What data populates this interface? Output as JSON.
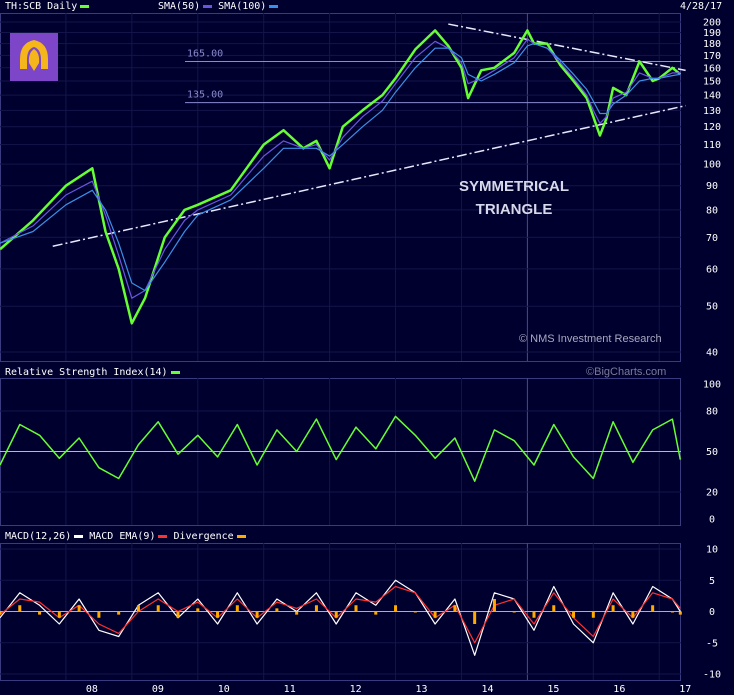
{
  "header": {
    "symbol": "TH:SCB Daily",
    "sma50": "SMA(50)",
    "sma100": "SMA(100)",
    "date": "4/28/17"
  },
  "colors": {
    "background": "#00002e",
    "price": "#66ff33",
    "sma50": "#6b55e0",
    "sma100": "#3a8fe8",
    "level": "#8a8ad0",
    "trendline": "#e8e8ff",
    "macd": "#ffffff",
    "macd_ema": "#ff3030",
    "divergence": "#ffaa00",
    "logo": "#7d45c8"
  },
  "annotations": {
    "pattern_line1": "SYMMETRICAL",
    "pattern_line2": "TRIANGLE",
    "copyright": "© NMS Investment Research",
    "bigcharts": "©BigCharts.com"
  },
  "logo_icon": "scb-bank-logo-icon",
  "chart_data": [
    {
      "type": "line",
      "panel": "price",
      "scale": "log",
      "ylim": [
        40,
        200
      ],
      "yticks": [
        40,
        50,
        60,
        70,
        80,
        90,
        100,
        110,
        120,
        130,
        140,
        150,
        160,
        170,
        180,
        190,
        200
      ],
      "xlabels": [
        "08",
        "09",
        "10",
        "11",
        "12",
        "13",
        "14",
        "15",
        "16",
        "17"
      ],
      "x": [
        2007.0,
        2007.5,
        2008.0,
        2008.4,
        2008.6,
        2008.8,
        2009.0,
        2009.2,
        2009.5,
        2009.8,
        2010.0,
        2010.5,
        2011.0,
        2011.3,
        2011.6,
        2011.8,
        2012.0,
        2012.2,
        2012.5,
        2012.8,
        2013.0,
        2013.3,
        2013.6,
        2013.8,
        2014.0,
        2014.1,
        2014.3,
        2014.5,
        2014.8,
        2015.0,
        2015.1,
        2015.3,
        2015.5,
        2015.7,
        2015.9,
        2016.0,
        2016.1,
        2016.2,
        2016.3,
        2016.5,
        2016.7,
        2016.9,
        2017.0,
        2017.2,
        2017.32
      ],
      "series": [
        {
          "name": "TH:SCB Daily",
          "values": [
            66,
            76,
            90,
            98,
            72,
            60,
            46,
            52,
            70,
            80,
            82,
            88,
            110,
            118,
            108,
            112,
            98,
            120,
            130,
            140,
            152,
            175,
            192,
            178,
            160,
            138,
            158,
            160,
            172,
            192,
            180,
            180,
            162,
            150,
            138,
            126,
            115,
            125,
            145,
            140,
            165,
            150,
            152,
            160,
            155
          ]
        },
        {
          "name": "SMA(50)",
          "values": [
            68,
            74,
            86,
            92,
            78,
            64,
            52,
            54,
            66,
            76,
            80,
            86,
            104,
            112,
            108,
            110,
            102,
            114,
            126,
            136,
            148,
            168,
            182,
            176,
            164,
            148,
            152,
            158,
            168,
            184,
            180,
            176,
            164,
            152,
            140,
            130,
            122,
            126,
            138,
            142,
            156,
            152,
            152,
            156,
            156
          ]
        },
        {
          "name": "SMA(100)",
          "values": [
            68,
            72,
            82,
            88,
            80,
            68,
            56,
            54,
            62,
            72,
            78,
            84,
            98,
            108,
            108,
            108,
            104,
            110,
            120,
            130,
            142,
            160,
            176,
            176,
            168,
            155,
            150,
            155,
            164,
            178,
            180,
            176,
            166,
            155,
            144,
            136,
            128,
            128,
            134,
            140,
            150,
            152,
            152,
            154,
            155
          ]
        }
      ],
      "horizontal_lines": [
        {
          "label": "165.00",
          "value": 165
        },
        {
          "label": "135.00",
          "value": 135
        }
      ],
      "trendlines": [
        {
          "x": [
            2007.8,
            2017.4
          ],
          "y": [
            67,
            133
          ]
        },
        {
          "x": [
            2013.8,
            2017.4
          ],
          "y": [
            198,
            158
          ]
        }
      ]
    },
    {
      "type": "line",
      "panel": "rsi",
      "title": "Relative Strength Index(14)",
      "ylim": [
        0,
        100
      ],
      "yticks": [
        0,
        20,
        50,
        80,
        100
      ],
      "reference_line": 50,
      "x": [
        2007.0,
        2007.3,
        2007.6,
        2007.9,
        2008.2,
        2008.5,
        2008.8,
        2009.1,
        2009.4,
        2009.7,
        2010.0,
        2010.3,
        2010.6,
        2010.9,
        2011.2,
        2011.5,
        2011.8,
        2012.1,
        2012.4,
        2012.7,
        2013.0,
        2013.3,
        2013.6,
        2013.9,
        2014.2,
        2014.5,
        2014.8,
        2015.1,
        2015.4,
        2015.7,
        2016.0,
        2016.3,
        2016.6,
        2016.9,
        2017.2,
        2017.32
      ],
      "series": [
        {
          "name": "Relative Strength Index(14)",
          "values": [
            40,
            70,
            62,
            45,
            60,
            38,
            30,
            55,
            72,
            48,
            62,
            46,
            70,
            40,
            66,
            50,
            74,
            44,
            68,
            52,
            76,
            62,
            45,
            60,
            28,
            66,
            58,
            40,
            70,
            46,
            30,
            72,
            42,
            66,
            74,
            44
          ]
        }
      ]
    },
    {
      "type": "line",
      "panel": "macd",
      "title": "MACD(12,26)",
      "ylim": [
        -10,
        10
      ],
      "yticks": [
        -10,
        -5,
        0,
        5,
        10
      ],
      "x": [
        2007.0,
        2007.3,
        2007.6,
        2007.9,
        2008.2,
        2008.5,
        2008.8,
        2009.1,
        2009.4,
        2009.7,
        2010.0,
        2010.3,
        2010.6,
        2010.9,
        2011.2,
        2011.5,
        2011.8,
        2012.1,
        2012.4,
        2012.7,
        2013.0,
        2013.3,
        2013.6,
        2013.9,
        2014.2,
        2014.5,
        2014.8,
        2015.1,
        2015.4,
        2015.7,
        2016.0,
        2016.3,
        2016.6,
        2016.9,
        2017.2,
        2017.32
      ],
      "series": [
        {
          "name": "MACD(12,26)",
          "values": [
            -1,
            3,
            1,
            -2,
            2,
            -3,
            -4,
            1,
            3,
            -1,
            2,
            -2,
            3,
            -2,
            2,
            0,
            3,
            -2,
            3,
            1,
            5,
            3,
            -2,
            2,
            -7,
            3,
            2,
            -3,
            4,
            -2,
            -5,
            3,
            -2,
            4,
            2,
            0
          ]
        },
        {
          "name": "MACD EMA(9)",
          "values": [
            -0.5,
            2,
            1.5,
            -1,
            1,
            -2,
            -3.5,
            0,
            2,
            0,
            1.5,
            -1,
            2,
            -1,
            1.5,
            0.5,
            2,
            -1,
            2,
            1.5,
            4,
            3,
            -1,
            1,
            -5,
            1,
            2,
            -2,
            3,
            -1,
            -4,
            2,
            -1,
            3,
            2,
            0.5
          ]
        },
        {
          "name": "Divergence",
          "values": [
            -0.5,
            1,
            -0.5,
            -1,
            1,
            -1,
            -0.5,
            1,
            1,
            -1,
            0.5,
            -1,
            1,
            -1,
            0.5,
            -0.5,
            1,
            -1,
            1,
            -0.5,
            1,
            0,
            -1,
            1,
            -2,
            2,
            0,
            -1,
            1,
            -1,
            -1,
            1,
            -1,
            1,
            0,
            -0.5
          ]
        }
      ]
    }
  ]
}
